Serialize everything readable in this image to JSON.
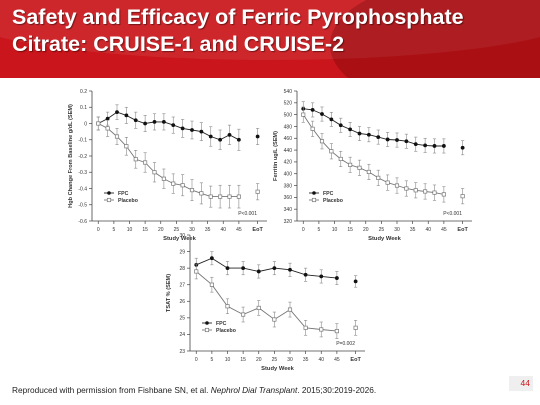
{
  "slide": {
    "title": "Safety and Efficacy of Ferric Pyrophosphate Citrate: CRUISE-1 and CRUISE-2",
    "citation": {
      "prefix": "Reproduced with permission from Fishbane SN, et al. ",
      "journal": "Nephrol Dial Transplant",
      "suffix": ". 2015;30:2019-2026."
    },
    "page_number": "44"
  },
  "chart_data": [
    {
      "type": "line",
      "ylabel": "Hgb Change From Baseline g/dL (SEM)",
      "xlabel": "Study Week",
      "ylim": [
        -0.6,
        0.2
      ],
      "yticks": [
        -0.6,
        -0.5,
        -0.4,
        -0.3,
        -0.2,
        -0.1,
        0.0,
        0.1,
        0.2
      ],
      "ytick_labels": [
        "-0.6",
        "-0.5",
        "-0.4",
        "-0.3",
        "-0.2",
        "-0.1",
        "0",
        "0.1",
        "0.2"
      ],
      "xticks": [
        "0",
        "5",
        "10",
        "15",
        "20",
        "25",
        "30",
        "35",
        "40",
        "45",
        "EoT"
      ],
      "pvalue": "P<0.001",
      "legend_position": "bottom-left",
      "series": [
        {
          "name": "FPC",
          "marker": "filled",
          "x": [
            0,
            3,
            6,
            9,
            12,
            15,
            18,
            21,
            24,
            27,
            30,
            33,
            36,
            39,
            42,
            45
          ],
          "y": [
            0.0,
            0.03,
            0.07,
            0.05,
            0.02,
            0.0,
            0.01,
            0.01,
            -0.01,
            -0.03,
            -0.04,
            -0.05,
            -0.08,
            -0.1,
            -0.07,
            -0.1
          ],
          "err": [
            0.04,
            0.04,
            0.045,
            0.05,
            0.05,
            0.05,
            0.05,
            0.05,
            0.05,
            0.055,
            0.055,
            0.055,
            0.06,
            0.06,
            0.06,
            0.065
          ],
          "eot": -0.08,
          "eot_err": 0.05
        },
        {
          "name": "Placebo",
          "marker": "open",
          "x": [
            0,
            3,
            6,
            9,
            12,
            15,
            18,
            21,
            24,
            27,
            30,
            33,
            36,
            39,
            42,
            45
          ],
          "y": [
            0.0,
            -0.03,
            -0.08,
            -0.14,
            -0.22,
            -0.24,
            -0.3,
            -0.34,
            -0.37,
            -0.38,
            -0.41,
            -0.43,
            -0.45,
            -0.45,
            -0.45,
            -0.45
          ],
          "err": [
            0.04,
            0.05,
            0.05,
            0.055,
            0.055,
            0.06,
            0.06,
            0.06,
            0.06,
            0.065,
            0.065,
            0.065,
            0.065,
            0.07,
            0.07,
            0.07
          ],
          "eot": -0.42,
          "eot_err": 0.05
        }
      ]
    },
    {
      "type": "line",
      "ylabel": "Ferritin ug/L (SEM)",
      "xlabel": "Study Week",
      "ylim": [
        320,
        540
      ],
      "yticks": [
        320,
        340,
        360,
        380,
        400,
        420,
        440,
        460,
        480,
        500,
        520,
        540
      ],
      "ytick_labels": [
        "320",
        "340",
        "360",
        "380",
        "400",
        "420",
        "440",
        "460",
        "480",
        "500",
        "520",
        "540"
      ],
      "xticks": [
        "0",
        "5",
        "10",
        "15",
        "20",
        "25",
        "30",
        "35",
        "40",
        "45",
        "EoT"
      ],
      "pvalue": "P<0.001",
      "legend_position": "bottom-left",
      "series": [
        {
          "name": "FPC",
          "marker": "filled",
          "x": [
            0,
            3,
            6,
            9,
            12,
            15,
            18,
            21,
            24,
            27,
            30,
            33,
            36,
            39,
            42,
            45
          ],
          "y": [
            510,
            508,
            501,
            492,
            482,
            475,
            468,
            466,
            462,
            458,
            457,
            455,
            450,
            448,
            447,
            447
          ],
          "err": [
            12,
            12,
            12,
            12,
            12,
            12,
            12,
            12,
            12,
            12,
            12,
            12,
            12,
            12,
            12,
            12
          ],
          "eot": 444,
          "eot_err": 12
        },
        {
          "name": "Placebo",
          "marker": "open",
          "x": [
            0,
            3,
            6,
            9,
            12,
            15,
            18,
            21,
            24,
            27,
            30,
            33,
            36,
            39,
            42,
            45
          ],
          "y": [
            500,
            476,
            455,
            438,
            425,
            415,
            410,
            403,
            393,
            385,
            380,
            375,
            372,
            370,
            368,
            365
          ],
          "err": [
            13,
            13,
            13,
            13,
            13,
            13,
            13,
            13,
            13,
            13,
            13,
            13,
            13,
            13,
            13,
            13
          ],
          "eot": 362,
          "eot_err": 13
        }
      ]
    },
    {
      "type": "line",
      "ylabel": "TSAT % (SEM)",
      "xlabel": "Study Week",
      "ylim": [
        23,
        30
      ],
      "yticks": [
        23,
        24,
        25,
        26,
        27,
        28,
        29,
        30
      ],
      "ytick_labels": [
        "23",
        "24",
        "25",
        "26",
        "27",
        "28",
        "29",
        "30"
      ],
      "xticks": [
        "0",
        "5",
        "10",
        "15",
        "20",
        "25",
        "30",
        "35",
        "40",
        "45",
        "EoT"
      ],
      "pvalue": "P=0.002",
      "legend_position": "bottom-left",
      "series": [
        {
          "name": "FPC",
          "marker": "filled",
          "x": [
            0,
            5,
            10,
            15,
            20,
            25,
            30,
            35,
            40,
            45
          ],
          "y": [
            28.2,
            28.6,
            28.0,
            28.0,
            27.8,
            28.0,
            27.9,
            27.6,
            27.5,
            27.4
          ],
          "err": [
            0.4,
            0.4,
            0.4,
            0.4,
            0.4,
            0.4,
            0.4,
            0.4,
            0.4,
            0.4
          ],
          "eot": 27.2,
          "eot_err": 0.35
        },
        {
          "name": "Placebo",
          "marker": "open",
          "x": [
            0,
            5,
            10,
            15,
            20,
            25,
            30,
            35,
            40,
            45
          ],
          "y": [
            27.8,
            27.0,
            25.7,
            25.2,
            25.6,
            24.9,
            25.5,
            24.4,
            24.3,
            24.2
          ],
          "err": [
            0.45,
            0.45,
            0.45,
            0.45,
            0.45,
            0.45,
            0.45,
            0.45,
            0.45,
            0.45
          ],
          "eot": 24.4,
          "eot_err": 0.45
        }
      ]
    }
  ]
}
